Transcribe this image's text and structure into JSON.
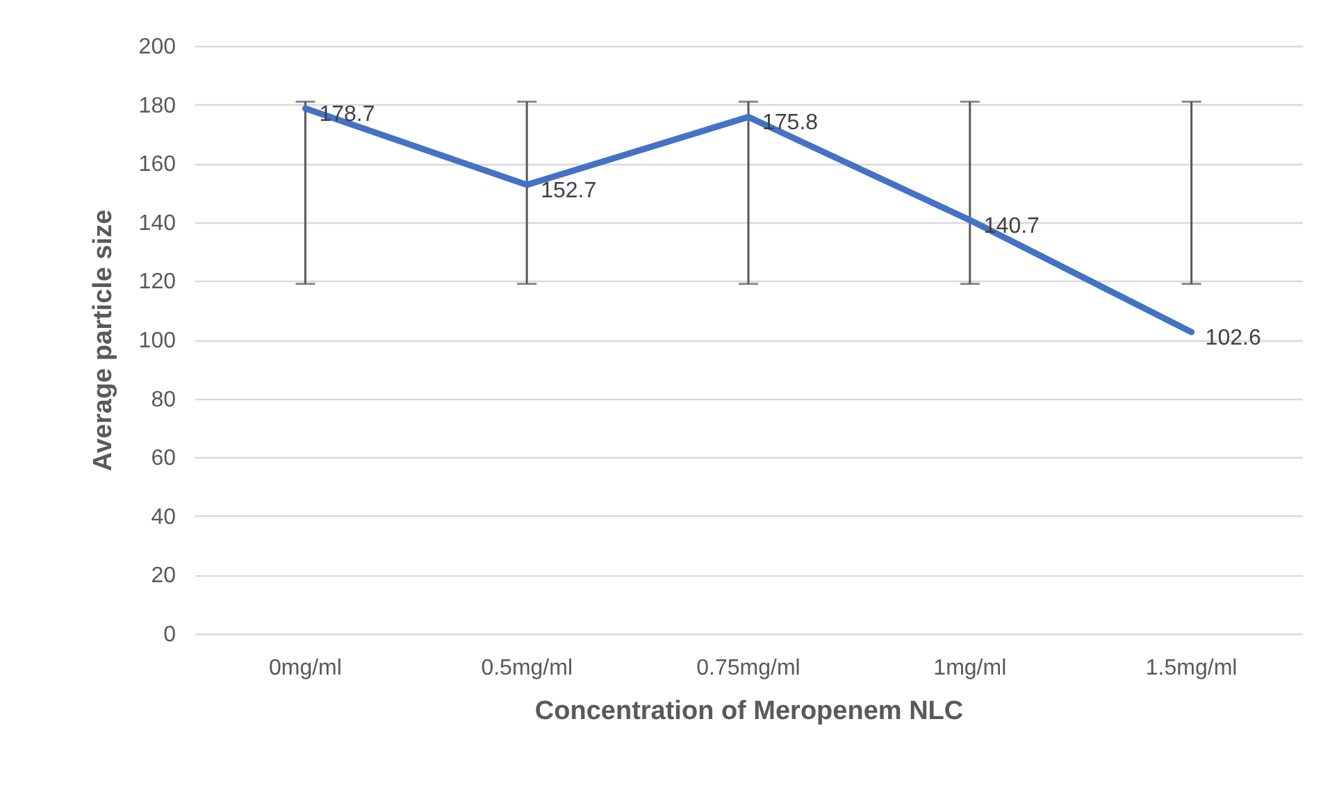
{
  "chart_data": {
    "type": "line",
    "xlabel": "Concentration of Meropenem NLC",
    "ylabel": "Average particle size",
    "categories": [
      "0mg/ml",
      "0.5mg/ml",
      "0.75mg/ml",
      "1mg/ml",
      "1.5mg/ml"
    ],
    "series": [
      {
        "color": "#4472c4",
        "values": [
          178.7,
          152.7,
          175.8,
          140.7,
          102.6
        ],
        "errors": [
          [
            119,
            181
          ],
          [
            119,
            181
          ],
          [
            119,
            181
          ],
          [
            119,
            181
          ],
          [
            119,
            181
          ]
        ]
      }
    ],
    "ylim": [
      0,
      200
    ],
    "yticks": [
      0,
      20,
      40,
      60,
      80,
      100,
      120,
      140,
      160,
      180,
      200
    ],
    "grid": "y",
    "data_labels": true,
    "legend": false,
    "marker": "none",
    "line_style": "solid"
  }
}
